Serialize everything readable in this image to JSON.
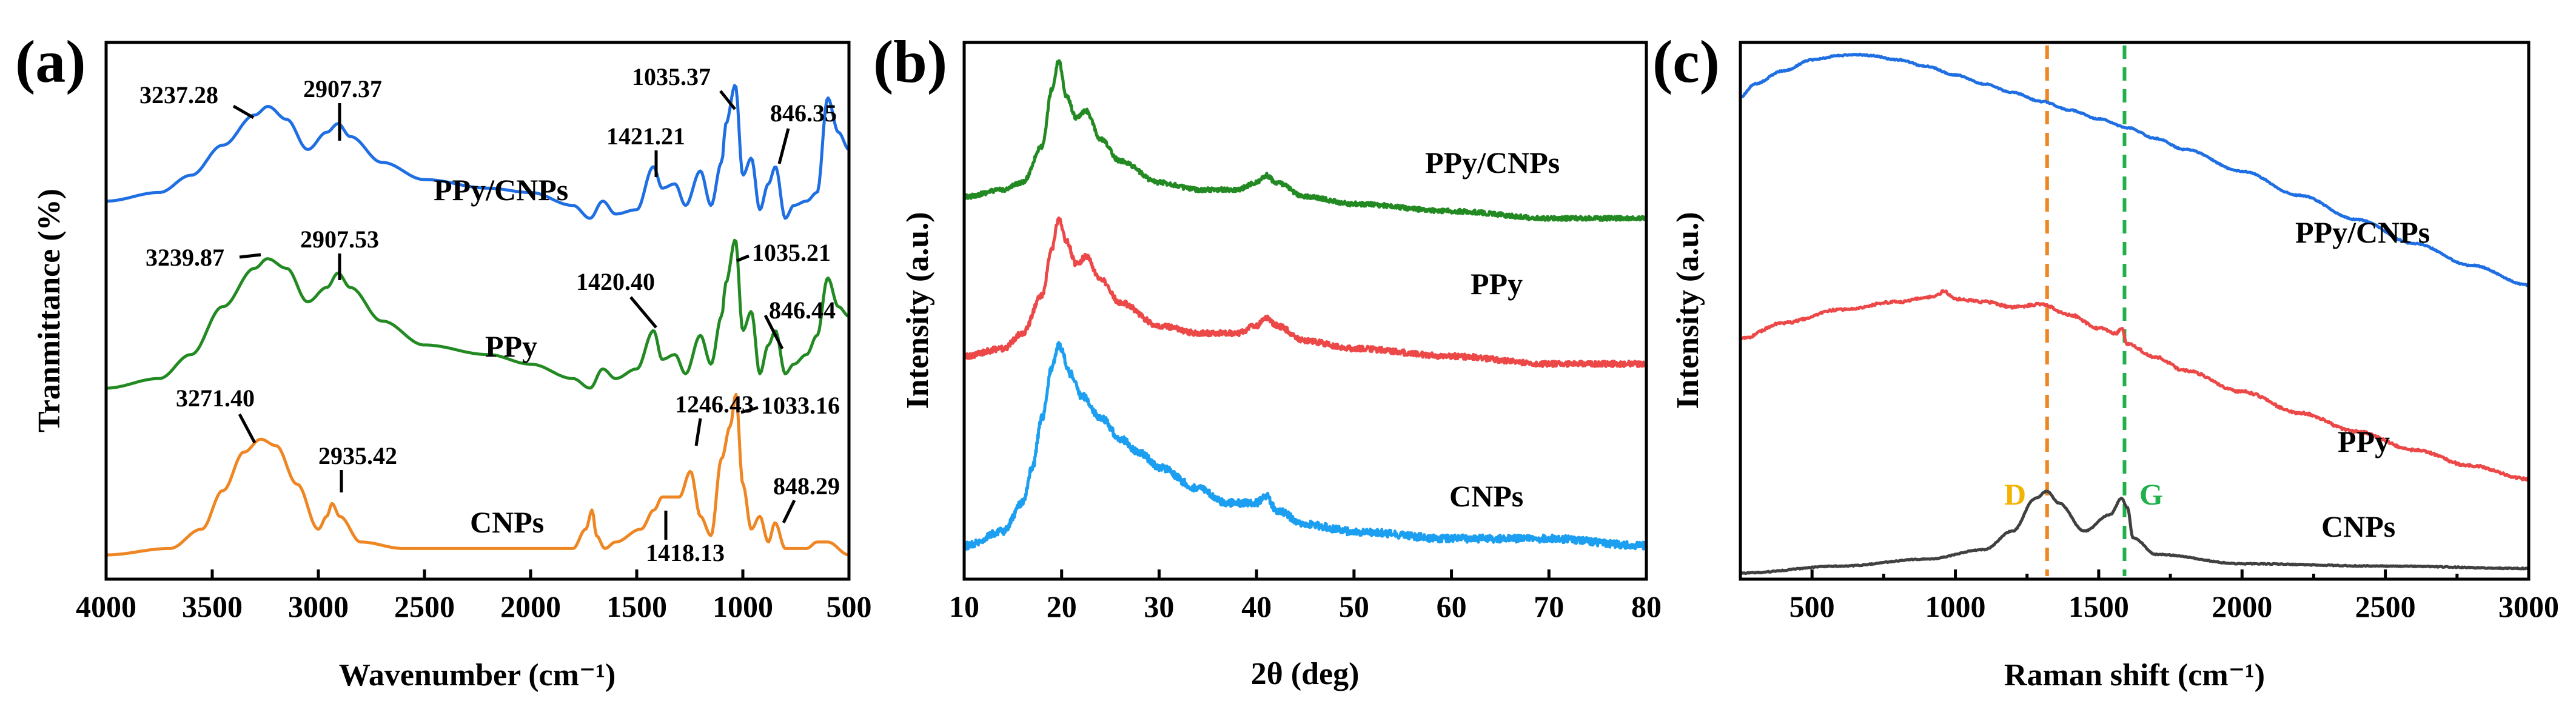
{
  "colors": {
    "blue": "#1f6fe3",
    "green": "#238a23",
    "orange": "#ee8623",
    "red": "#ec4848",
    "lightblue": "#1c9ff0",
    "gray": "#404040",
    "d_line": "#ee8623",
    "g_line": "#22b04a",
    "d_text": "#f2b400",
    "g_text": "#22b04a"
  },
  "chart_data": [
    {
      "panel": "(a)",
      "type": "line",
      "title": "",
      "xlabel": "Wavenumber (cm⁻¹)",
      "ylabel": "Tranmittance (%)",
      "xlim": [
        4000,
        500
      ],
      "ylim": [
        0,
        100
      ],
      "xticks": [
        "4000",
        "3500",
        "3000",
        "2500",
        "2000",
        "1500",
        "1000",
        "500"
      ],
      "series": [
        {
          "name": "PPy/CNPs",
          "color": "blue",
          "x": [
            4000,
            3750,
            3600,
            3450,
            3300,
            3237.28,
            3150,
            3050,
            2960,
            2907.37,
            2850,
            2700,
            2500,
            2200,
            2000,
            1800,
            1720,
            1660,
            1600,
            1500,
            1421.21,
            1380,
            1320,
            1270,
            1200,
            1150,
            1100,
            1080,
            1035.37,
            1000,
            960,
            920,
            880,
            846.35,
            800,
            760,
            700,
            650,
            600,
            550,
            500
          ],
          "values": [
            64,
            66,
            70,
            77,
            84,
            86,
            83,
            76,
            80,
            82,
            79,
            73,
            69,
            67,
            66,
            63,
            60,
            64,
            61,
            62,
            72,
            67,
            68,
            63,
            71,
            63,
            73,
            82,
            91,
            70,
            74,
            62,
            68,
            72,
            60,
            63,
            64,
            66,
            88,
            80,
            76
          ]
        },
        {
          "name": "PPy",
          "color": "green",
          "x": [
            4000,
            3750,
            3600,
            3450,
            3300,
            3239.87,
            3150,
            3050,
            2960,
            2907.53,
            2850,
            2700,
            2500,
            2200,
            2000,
            1800,
            1720,
            1660,
            1600,
            1500,
            1420.4,
            1380,
            1320,
            1270,
            1200,
            1150,
            1100,
            1080,
            1035.21,
            1000,
            960,
            920,
            880,
            846.44,
            800,
            760,
            700,
            650,
            600,
            550,
            500
          ],
          "values": [
            33,
            35,
            40,
            50,
            58,
            60,
            58,
            51,
            54,
            57,
            54,
            47,
            42,
            40,
            38,
            35,
            33,
            37,
            35,
            37,
            45,
            39,
            40,
            36,
            44,
            38,
            48,
            55,
            64,
            45,
            49,
            36,
            42,
            45,
            36,
            38,
            40,
            44,
            56,
            50,
            48
          ]
        },
        {
          "name": "CNPs",
          "color": "orange",
          "x": [
            4000,
            3700,
            3550,
            3450,
            3350,
            3271.4,
            3200,
            3100,
            3000,
            2960,
            2935.42,
            2900,
            2800,
            2600,
            2300,
            2000,
            1800,
            1740,
            1710,
            1690,
            1650,
            1600,
            1480,
            1418.13,
            1380,
            1300,
            1246.43,
            1200,
            1150,
            1100,
            1060,
            1033.16,
            1000,
            960,
            920,
            880,
            848.29,
            800,
            700,
            650,
            600,
            500
          ],
          "values": [
            6,
            7,
            10,
            16,
            22,
            24,
            23,
            17,
            10,
            12,
            14,
            12,
            8,
            7,
            7,
            7,
            7,
            10,
            13,
            9,
            7,
            8,
            10,
            13,
            15,
            15,
            19,
            12,
            9,
            21,
            26,
            31,
            17,
            10,
            12,
            8,
            11,
            7,
            7,
            8,
            8,
            6
          ]
        }
      ],
      "annotations": [
        "3237.28",
        "2907.37",
        "1421.21",
        "1035.37",
        "846.35",
        "3239.87",
        "2907.53",
        "1420.40",
        "1035.21",
        "846.44",
        "3271.40",
        "2935.42",
        "1418.13",
        "1246.43",
        "1033.16",
        "848.29"
      ]
    },
    {
      "panel": "(b)",
      "type": "line",
      "title": "",
      "xlabel": "2θ (deg)",
      "ylabel": "Intensity (a.u.)",
      "xlim": [
        10,
        80
      ],
      "ylim": [
        0,
        100
      ],
      "xticks": [
        "10",
        "20",
        "30",
        "40",
        "50",
        "60",
        "70",
        "80"
      ],
      "series": [
        {
          "name": "PPy/CNPs",
          "color": "green",
          "x": [
            10,
            14,
            16,
            18,
            19,
            19.7,
            20.5,
            21.5,
            22.5,
            24,
            26,
            30,
            34,
            38,
            40,
            41,
            42,
            45,
            50,
            60,
            70,
            80
          ],
          "values": [
            73,
            74,
            75,
            80,
            88,
            92,
            87,
            84,
            85,
            81,
            78,
            75,
            74,
            74,
            75,
            76,
            75,
            73,
            72,
            71,
            70,
            70
          ]
        },
        {
          "name": "PPy",
          "color": "red",
          "x": [
            10,
            14,
            16,
            18,
            19,
            19.7,
            20.5,
            21.5,
            22.5,
            24,
            26,
            30,
            34,
            38,
            40,
            41,
            42,
            45,
            50,
            60,
            70,
            80
          ],
          "values": [
            44,
            45,
            47,
            52,
            58,
            62,
            59,
            56,
            57,
            54,
            51,
            48,
            47,
            47,
            48,
            49,
            48,
            46,
            45,
            44,
            43,
            43
          ]
        },
        {
          "name": "CNPs",
          "color": "lightblue",
          "x": [
            10,
            14,
            16,
            17,
            18,
            19,
            19.7,
            21,
            22,
            24,
            26,
            28,
            30,
            34,
            37,
            40,
            41,
            42,
            45,
            50,
            60,
            70,
            80
          ],
          "values": [
            12,
            14,
            18,
            23,
            30,
            37,
            40,
            36,
            33,
            30,
            27,
            25,
            23,
            20,
            18,
            18,
            19,
            17,
            15,
            14,
            13,
            13,
            12
          ]
        }
      ]
    },
    {
      "panel": "(c)",
      "type": "line",
      "title": "",
      "xlabel": "Raman shift (cm⁻¹)",
      "ylabel": "Intensity (a.u.)",
      "xlim": [
        250,
        3000
      ],
      "ylim": [
        0,
        100
      ],
      "xticks": [
        "500",
        "1000",
        "1500",
        "2000",
        "2500",
        "3000"
      ],
      "series": [
        {
          "name": "PPy/CNPs",
          "color": "blue",
          "x": [
            250,
            300,
            400,
            500,
            600,
            650,
            700,
            800,
            900,
            1000,
            1100,
            1200,
            1300,
            1400,
            1500,
            1600,
            1700,
            1800,
            2000,
            2200,
            2400,
            2600,
            2800,
            3000
          ],
          "values": [
            84,
            87,
            90,
            92.5,
            93.5,
            93.7,
            93.5,
            92.5,
            91,
            89,
            87,
            85,
            83,
            81,
            79,
            77,
            74.5,
            72,
            67,
            61.5,
            56,
            50.5,
            45.5,
            41
          ]
        },
        {
          "name": "PPy",
          "color": "red",
          "x": [
            250,
            400,
            600,
            800,
            930,
            960,
            1000,
            1100,
            1200,
            1300,
            1400,
            1500,
            1560,
            1580,
            1600,
            1700,
            1800,
            2000,
            2200,
            2400,
            2600,
            2800,
            3000
          ],
          "values": [
            34,
            37,
            39.5,
            41,
            42,
            43,
            41.5,
            41,
            40,
            40.5,
            38.5,
            36,
            35,
            36,
            33,
            30.5,
            28,
            24,
            20,
            16.5,
            13,
            10,
            7.5
          ]
        },
        {
          "name": "CNPs",
          "color": "gray",
          "x": [
            250,
            600,
            900,
            1100,
            1200,
            1280,
            1320,
            1360,
            1450,
            1540,
            1580,
            1600,
            1620,
            1700,
            2000,
            2500,
            3000
          ],
          "values": [
            0,
            0.3,
            0.6,
            1,
            1.8,
            3.2,
            3.5,
            3,
            1.8,
            2.5,
            3.2,
            2.8,
            1.5,
            0.8,
            0.4,
            0.3,
            0.2
          ]
        }
      ],
      "markers": [
        {
          "label": "D",
          "x": 1320
        },
        {
          "label": "G",
          "x": 1590
        }
      ]
    }
  ]
}
